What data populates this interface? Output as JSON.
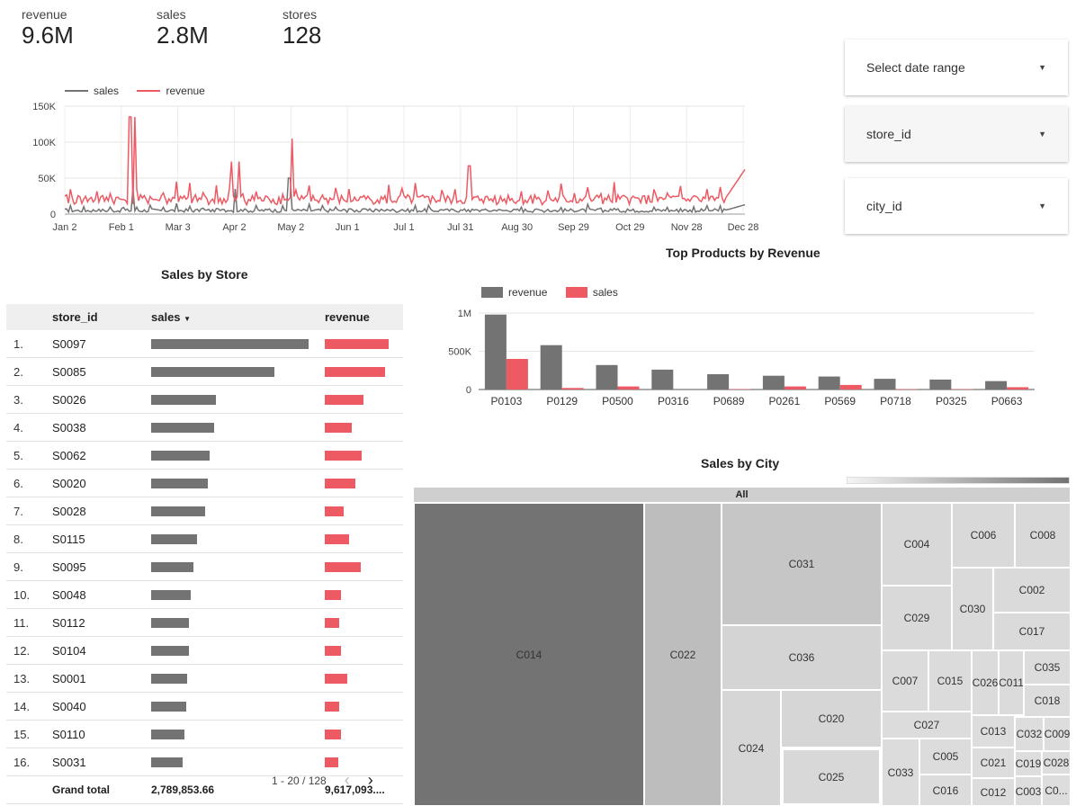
{
  "kpis": [
    {
      "label": "revenue",
      "value": "9.6M"
    },
    {
      "label": "sales",
      "value": "2.8M"
    },
    {
      "label": "stores",
      "value": "128"
    }
  ],
  "filters": {
    "date_range": "Select date range",
    "store_id": "store_id",
    "city_id": "city_id"
  },
  "colors": {
    "sales": "#737373",
    "revenue": "#ed5a63"
  },
  "timeseries": {
    "legend": [
      "sales",
      "revenue"
    ],
    "x_ticks": [
      "Jan 2",
      "Feb 1",
      "Mar 3",
      "Apr 2",
      "May 2",
      "Jun 1",
      "Jul 1",
      "Jul 31",
      "Aug 30",
      "Sep 29",
      "Oct 29",
      "Nov 28",
      "Dec 28"
    ],
    "y_ticks": [
      "150K",
      "100K",
      "50K",
      "0"
    ]
  },
  "store_table": {
    "title": "Sales by Store",
    "headers": {
      "store_id": "store_id",
      "sales": "sales",
      "revenue": "revenue"
    },
    "rows": [
      {
        "n": "1.",
        "id": "S0097",
        "sales": 1.0,
        "revenue": 1.0
      },
      {
        "n": "2.",
        "id": "S0085",
        "sales": 0.78,
        "revenue": 0.95
      },
      {
        "n": "3.",
        "id": "S0026",
        "sales": 0.41,
        "revenue": 0.61
      },
      {
        "n": "4.",
        "id": "S0038",
        "sales": 0.4,
        "revenue": 0.42
      },
      {
        "n": "5.",
        "id": "S0062",
        "sales": 0.37,
        "revenue": 0.58
      },
      {
        "n": "6.",
        "id": "S0020",
        "sales": 0.36,
        "revenue": 0.48
      },
      {
        "n": "7.",
        "id": "S0028",
        "sales": 0.34,
        "revenue": 0.29
      },
      {
        "n": "8.",
        "id": "S0115",
        "sales": 0.29,
        "revenue": 0.38
      },
      {
        "n": "9.",
        "id": "S0095",
        "sales": 0.27,
        "revenue": 0.56
      },
      {
        "n": "10.",
        "id": "S0048",
        "sales": 0.25,
        "revenue": 0.25
      },
      {
        "n": "11.",
        "id": "S0112",
        "sales": 0.24,
        "revenue": 0.22
      },
      {
        "n": "12.",
        "id": "S0104",
        "sales": 0.24,
        "revenue": 0.26
      },
      {
        "n": "13.",
        "id": "S0001",
        "sales": 0.23,
        "revenue": 0.35
      },
      {
        "n": "14.",
        "id": "S0040",
        "sales": 0.22,
        "revenue": 0.23
      },
      {
        "n": "15.",
        "id": "S0110",
        "sales": 0.21,
        "revenue": 0.26
      },
      {
        "n": "16.",
        "id": "S0031",
        "sales": 0.2,
        "revenue": 0.21
      }
    ],
    "grand_total": {
      "label": "Grand total",
      "sales": "2,789,853.66",
      "revenue": "9,617,093...."
    },
    "pagination": "1 - 20 / 128"
  },
  "chart_data": [
    {
      "type": "bar",
      "title": "Top Products by Revenue",
      "categories": [
        "P0103",
        "P0129",
        "P0500",
        "P0316",
        "P0689",
        "P0261",
        "P0569",
        "P0718",
        "P0325",
        "P0663"
      ],
      "series": [
        {
          "name": "revenue",
          "values": [
            980000,
            580000,
            320000,
            260000,
            200000,
            180000,
            170000,
            140000,
            130000,
            110000
          ]
        },
        {
          "name": "sales",
          "values": [
            400000,
            20000,
            40000,
            0,
            5000,
            40000,
            60000,
            5000,
            5000,
            30000
          ]
        }
      ],
      "y_ticks": [
        "1M",
        "500K",
        "0"
      ],
      "ylim": [
        0,
        1000000
      ],
      "legend_position": "top-left"
    },
    {
      "type": "line",
      "title": "",
      "x_domain": [
        "Jan 2",
        "Dec 28"
      ],
      "ylim": [
        0,
        150000
      ],
      "series": [
        {
          "name": "sales",
          "baseline": 5000,
          "spikes": [
            [
              0.1,
              35000
            ],
            [
              0.25,
              35000
            ],
            [
              0.33,
              50000
            ]
          ]
        },
        {
          "name": "revenue",
          "baseline": 20000,
          "spikes": [
            [
              0.096,
              135000
            ],
            [
              0.103,
              135000
            ],
            [
              0.165,
              45000
            ],
            [
              0.245,
              73000
            ],
            [
              0.257,
              73000
            ],
            [
              0.335,
              105000
            ],
            [
              0.595,
              67000
            ]
          ]
        }
      ]
    }
  ],
  "treemap": {
    "title": "Sales by City",
    "root_label": "All",
    "cells": [
      {
        "label": "C014",
        "shade": "#737373"
      },
      {
        "label": "C022",
        "shade": "#bdbdbd"
      },
      {
        "label": "C031",
        "shade": "#c6c6c6"
      },
      {
        "label": "C036",
        "shade": "#d4d4d4"
      },
      {
        "label": "C024",
        "shade": "#d6d6d6"
      },
      {
        "label": "C020",
        "shade": "#d6d6d6"
      },
      {
        "label": "C025",
        "shade": "#d8d8d8"
      },
      {
        "label": "C004",
        "shade": "#d8d8d8"
      },
      {
        "label": "C006",
        "shade": "#d9d9d9"
      },
      {
        "label": "C008",
        "shade": "#d9d9d9"
      },
      {
        "label": "C029",
        "shade": "#d9d9d9"
      },
      {
        "label": "C030",
        "shade": "#dadada"
      },
      {
        "label": "C002",
        "shade": "#dadada"
      },
      {
        "label": "C017",
        "shade": "#dadada"
      },
      {
        "label": "C007",
        "shade": "#dbdbdb"
      },
      {
        "label": "C015",
        "shade": "#dbdbdb"
      },
      {
        "label": "C026",
        "shade": "#dbdbdb"
      },
      {
        "label": "C011",
        "shade": "#dbdbdb"
      },
      {
        "label": "C035",
        "shade": "#dcdcdc"
      },
      {
        "label": "C018",
        "shade": "#dcdcdc"
      },
      {
        "label": "C027",
        "shade": "#dcdcdc"
      },
      {
        "label": "C033",
        "shade": "#dcdcdc"
      },
      {
        "label": "C005",
        "shade": "#dcdcdc"
      },
      {
        "label": "C016",
        "shade": "#dcdcdc"
      },
      {
        "label": "C013",
        "shade": "#dddddd"
      },
      {
        "label": "C032",
        "shade": "#dddddd"
      },
      {
        "label": "C009",
        "shade": "#dddddd"
      },
      {
        "label": "C021",
        "shade": "#dddddd"
      },
      {
        "label": "C019",
        "shade": "#dddddd"
      },
      {
        "label": "C028",
        "shade": "#dddddd"
      },
      {
        "label": "C012",
        "shade": "#dddddd"
      },
      {
        "label": "C003",
        "shade": "#dddddd"
      },
      {
        "label": "C0...",
        "shade": "#dddddd"
      }
    ]
  }
}
